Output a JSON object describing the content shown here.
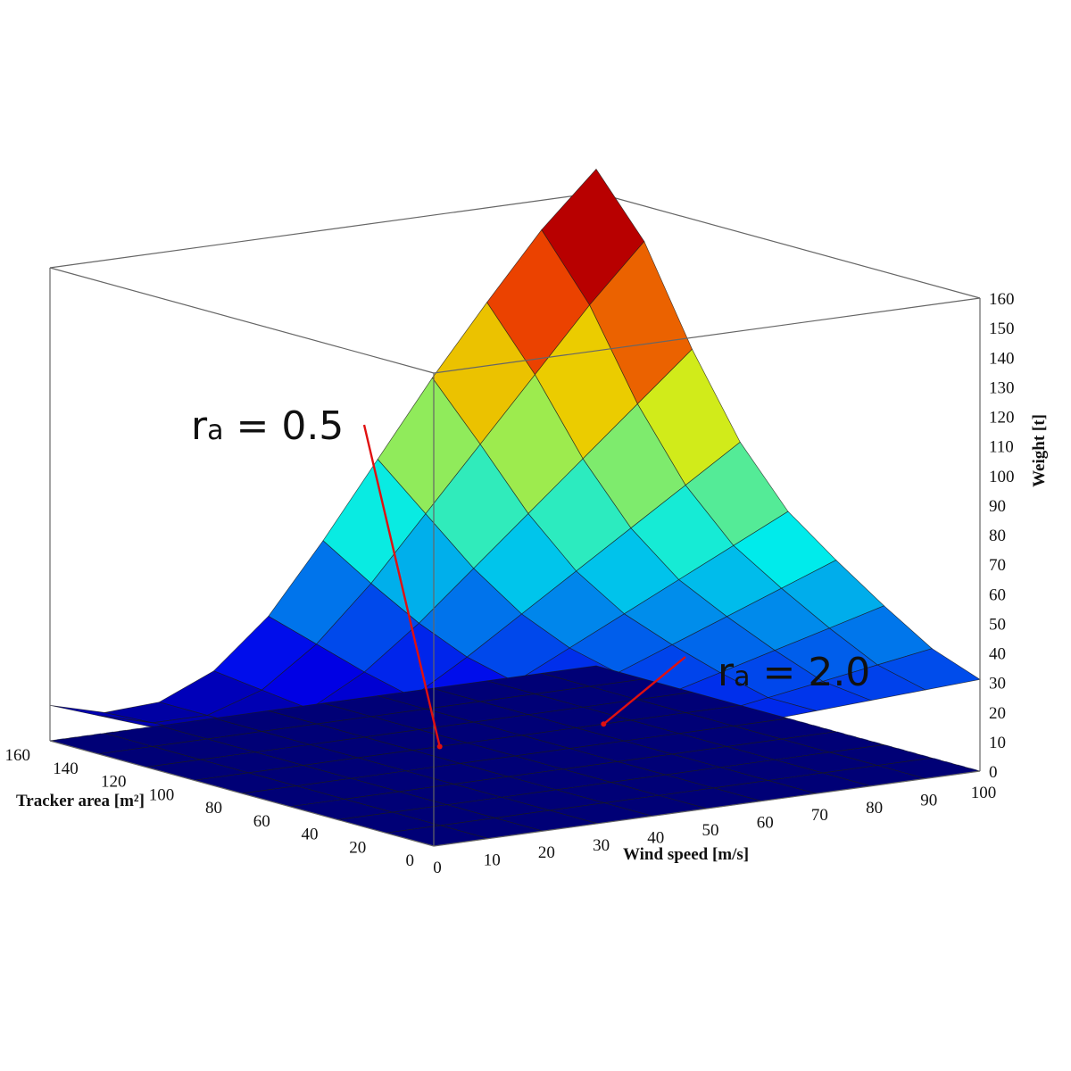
{
  "chart_data": {
    "type": "surface3d",
    "title": "",
    "x_axis": {
      "label": "Tracker area [m²]",
      "range": [
        0,
        160
      ],
      "ticks": [
        0,
        20,
        40,
        60,
        80,
        100,
        120,
        140,
        160
      ]
    },
    "y_axis": {
      "label": "Wind speed [m/s]",
      "range": [
        0,
        100
      ],
      "ticks": [
        0,
        10,
        20,
        30,
        40,
        50,
        60,
        70,
        80,
        90,
        100
      ]
    },
    "z_axis": {
      "label": "Weight [t]",
      "range": [
        0,
        160
      ],
      "ticks": [
        0,
        10,
        20,
        30,
        40,
        50,
        60,
        70,
        80,
        90,
        100,
        110,
        120,
        130,
        140,
        150,
        160
      ]
    },
    "colormap": "jet",
    "colors": {
      "low": "#0018d8",
      "mid": "#00e8f0",
      "high": "#e80000"
    },
    "grid_x": [
      0,
      20,
      40,
      60,
      80,
      100,
      120,
      140,
      160
    ],
    "grid_y": [
      0,
      10,
      20,
      30,
      40,
      50,
      60,
      70,
      80,
      90,
      100
    ],
    "series": [
      {
        "annotation": {
          "prefix": "r",
          "subscript": "a",
          "text": " = 0.5",
          "point": [
            100,
            45
          ]
        },
        "weights": [
          [
            27,
            26,
            25,
            24,
            25,
            26,
            27,
            28,
            29,
            30,
            31
          ],
          [
            24,
            22,
            20,
            19,
            20,
            22,
            25,
            28,
            31,
            34,
            37
          ],
          [
            22,
            19,
            17,
            16,
            18,
            22,
            27,
            32,
            37,
            42,
            47
          ],
          [
            20,
            16,
            14,
            14,
            17,
            23,
            30,
            37,
            44,
            51,
            58
          ],
          [
            18,
            13,
            11,
            12,
            17,
            25,
            34,
            43,
            52,
            61,
            70
          ],
          [
            16,
            11,
            9,
            11,
            18,
            29,
            41,
            53,
            65,
            77,
            89
          ],
          [
            14,
            9,
            8,
            12,
            22,
            36,
            52,
            68,
            84,
            100,
            116
          ],
          [
            13,
            8,
            8,
            14,
            27,
            45,
            66,
            87,
            108,
            129,
            148
          ],
          [
            12,
            7,
            8,
            16,
            32,
            55,
            80,
            105,
            128,
            150,
            168
          ]
        ]
      },
      {
        "annotation": {
          "prefix": "r",
          "subscript": "a",
          "text": " = 2.0",
          "point": [
            100,
            75
          ]
        },
        "weights": [
          [
            0,
            0,
            0,
            0,
            0,
            0,
            0,
            0,
            0,
            0,
            0
          ],
          [
            0,
            0,
            0,
            0,
            0,
            0,
            0,
            0,
            0,
            0,
            0
          ],
          [
            0,
            0,
            0,
            0,
            0,
            0,
            0,
            0,
            0,
            0,
            0
          ],
          [
            0,
            0,
            0,
            0,
            0,
            0,
            0,
            0,
            0,
            0,
            0
          ],
          [
            0,
            0,
            0,
            0,
            0,
            0,
            0,
            0,
            0,
            0,
            0
          ],
          [
            0,
            0,
            0,
            0,
            0,
            0,
            0,
            0,
            0,
            0,
            0
          ],
          [
            0,
            0,
            0,
            0,
            0,
            0,
            0,
            0,
            0,
            0,
            0
          ],
          [
            0,
            0,
            0,
            0,
            0,
            0,
            0,
            0,
            0,
            0,
            0
          ],
          [
            0,
            0,
            0,
            0,
            0,
            0,
            0,
            0,
            0,
            0,
            0
          ]
        ]
      }
    ],
    "box": true,
    "grid": false
  }
}
